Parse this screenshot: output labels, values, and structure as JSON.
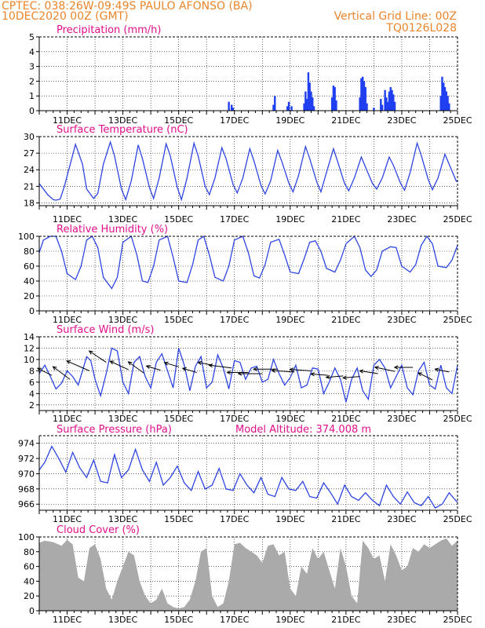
{
  "header": {
    "line1_left": "CPTEC:   038:26W-09:49S   PAULO AFONSO (BA)",
    "line2_left": "10DEC2020 00Z (GMT)",
    "line2_right": "Vertical Grid Line: 00Z",
    "line3_right": "TQ0126L028"
  },
  "colors": {
    "header": "#e8852a",
    "panel_title": "#e0108a",
    "line": "#2e45e0",
    "bar": "#1f3ff0",
    "cloud": "#aaaaaa",
    "arrow": "#000000",
    "text": "#000000"
  },
  "x_axis": {
    "ticks": [
      "11DEC",
      "13DEC",
      "15DEC",
      "17DEC",
      "19DEC",
      "21DEC",
      "23DEC",
      "25DEC"
    ],
    "tick_day_offsets": [
      1,
      3,
      5,
      7,
      9,
      11,
      13,
      15
    ],
    "range_days": [
      0,
      15
    ]
  },
  "chart_data": [
    {
      "type": "bar",
      "title": "Precipitation (mm/h)",
      "ylim": [
        0,
        5
      ],
      "yticks": [
        "0",
        "1",
        "2",
        "3",
        "4",
        "5"
      ],
      "x": [
        6.8,
        6.9,
        6.95,
        8.4,
        8.45,
        8.9,
        8.95,
        9.05,
        9.5,
        9.55,
        9.6,
        9.65,
        9.7,
        9.75,
        9.8,
        9.85,
        10.5,
        10.55,
        10.6,
        10.65,
        11.5,
        11.55,
        11.6,
        11.65,
        11.7,
        11.75,
        12.0,
        12.25,
        12.3,
        12.4,
        12.45,
        12.5,
        12.55,
        12.6,
        12.65,
        12.7,
        12.75,
        14.4,
        14.45,
        14.5,
        14.55,
        14.6,
        14.65,
        14.7
      ],
      "values": [
        0.6,
        0.4,
        0.2,
        0.4,
        1.0,
        0.3,
        0.6,
        0.3,
        0.5,
        1.3,
        0.8,
        2.6,
        1.9,
        1.3,
        0.9,
        0.3,
        0.9,
        1.7,
        1.6,
        0.7,
        0.9,
        2.2,
        2.3,
        2.0,
        1.6,
        0.5,
        0.2,
        0.8,
        0.4,
        1.4,
        0.9,
        0.6,
        1.3,
        1.6,
        1.4,
        1.1,
        0.6,
        1.0,
        2.3,
        1.9,
        1.6,
        1.3,
        1.0,
        0.5
      ]
    },
    {
      "type": "line",
      "title": "Surface Temperature (nC)",
      "ylim": [
        17.5,
        30
      ],
      "yticks": [
        "18",
        "21",
        "24",
        "27",
        "30"
      ],
      "x": [
        0,
        0.3,
        0.5,
        0.6,
        0.75,
        0.9,
        1.3,
        1.55,
        1.7,
        1.95,
        2.1,
        2.3,
        2.55,
        2.7,
        2.95,
        3.1,
        3.3,
        3.55,
        3.7,
        3.95,
        4.1,
        4.3,
        4.55,
        4.7,
        4.95,
        5.1,
        5.3,
        5.55,
        5.7,
        5.95,
        6.1,
        6.3,
        6.55,
        6.7,
        6.95,
        7.1,
        7.3,
        7.55,
        7.7,
        7.95,
        8.1,
        8.3,
        8.55,
        8.7,
        8.95,
        9.1,
        9.3,
        9.55,
        9.7,
        9.95,
        10.1,
        10.3,
        10.55,
        10.7,
        10.95,
        11.1,
        11.3,
        11.55,
        11.7,
        11.95,
        12.1,
        12.3,
        12.55,
        12.7,
        12.95,
        13.1,
        13.3,
        13.55,
        13.7,
        13.95,
        14.1,
        14.3,
        14.55,
        14.7,
        14.95,
        15
      ],
      "values": [
        21.5,
        19.5,
        18.6,
        18.5,
        18.7,
        21.0,
        28.6,
        25.0,
        20.5,
        18.8,
        19.7,
        25.0,
        29.0,
        26.5,
        20.5,
        18.6,
        22.0,
        28.5,
        26.0,
        20.8,
        18.8,
        22.5,
        28.7,
        26.5,
        20.8,
        18.6,
        22.5,
        28.8,
        26.5,
        21.0,
        19.5,
        22.5,
        28.0,
        26.0,
        21.3,
        19.8,
        22.5,
        27.8,
        25.6,
        21.2,
        19.6,
        22.0,
        27.5,
        25.5,
        21.6,
        20.0,
        23.0,
        28.2,
        26.0,
        21.8,
        20.0,
        23.5,
        27.8,
        25.5,
        21.5,
        20.2,
        22.5,
        26.3,
        24.5,
        21.5,
        20.5,
        22.5,
        26.3,
        24.8,
        21.6,
        20.3,
        23.5,
        28.8,
        26.6,
        22.2,
        20.4,
        22.5,
        26.8,
        25.0,
        22.0,
        21.8
      ]
    },
    {
      "type": "line",
      "title": "Relative Humidity (%)",
      "ylim": [
        0,
        100
      ],
      "yticks": [
        "0",
        "20",
        "40",
        "60",
        "80",
        "100"
      ],
      "x": [
        0,
        0.15,
        0.4,
        0.6,
        0.8,
        1.0,
        1.3,
        1.5,
        1.7,
        1.9,
        2.1,
        2.3,
        2.6,
        2.8,
        3.0,
        3.3,
        3.5,
        3.7,
        3.9,
        4.1,
        4.3,
        4.6,
        4.8,
        5.0,
        5.3,
        5.5,
        5.7,
        5.9,
        6.1,
        6.3,
        6.6,
        6.8,
        7.0,
        7.3,
        7.5,
        7.7,
        7.9,
        8.1,
        8.3,
        8.6,
        8.8,
        9.0,
        9.3,
        9.5,
        9.7,
        9.9,
        10.1,
        10.3,
        10.6,
        10.8,
        11.0,
        11.3,
        11.5,
        11.7,
        11.9,
        12.1,
        12.3,
        12.6,
        12.8,
        13.0,
        13.3,
        13.5,
        13.7,
        13.9,
        14.1,
        14.3,
        14.6,
        14.8,
        15
      ],
      "values": [
        78,
        95,
        100,
        100,
        80,
        50,
        42,
        60,
        95,
        100,
        85,
        45,
        30,
        45,
        92,
        100,
        75,
        40,
        38,
        60,
        95,
        100,
        72,
        40,
        38,
        62,
        95,
        100,
        75,
        45,
        40,
        60,
        95,
        100,
        78,
        47,
        44,
        62,
        92,
        96,
        75,
        52,
        50,
        70,
        92,
        94,
        80,
        57,
        52,
        68,
        90,
        100,
        85,
        55,
        46,
        55,
        80,
        86,
        85,
        60,
        52,
        62,
        88,
        100,
        90,
        60,
        58,
        68,
        88
      ]
    },
    {
      "type": "line",
      "title": "Surface Wind (m/s)",
      "ylim": [
        1,
        14
      ],
      "yticks": [
        "2",
        "4",
        "6",
        "8",
        "10",
        "12",
        "14"
      ],
      "x": [
        0,
        0.2,
        0.4,
        0.6,
        0.8,
        1.0,
        1.2,
        1.4,
        1.55,
        1.7,
        1.85,
        2.0,
        2.2,
        2.4,
        2.6,
        2.8,
        3.0,
        3.2,
        3.4,
        3.6,
        3.8,
        4.0,
        4.2,
        4.4,
        4.6,
        4.8,
        5.0,
        5.2,
        5.4,
        5.6,
        5.8,
        6.0,
        6.2,
        6.4,
        6.6,
        6.8,
        7.0,
        7.2,
        7.4,
        7.6,
        7.8,
        8.0,
        8.2,
        8.4,
        8.6,
        8.8,
        9.0,
        9.2,
        9.4,
        9.6,
        9.8,
        10.0,
        10.2,
        10.4,
        10.6,
        10.8,
        11.0,
        11.2,
        11.4,
        11.6,
        11.8,
        12.0,
        12.2,
        12.4,
        12.6,
        12.8,
        13.0,
        13.2,
        13.4,
        13.6,
        13.8,
        14.0,
        14.2,
        14.4,
        14.6,
        14.8,
        15
      ],
      "values": [
        7.5,
        9.0,
        7.0,
        4.8,
        5.8,
        8.0,
        7.0,
        5.5,
        8.0,
        10.5,
        9.8,
        6.5,
        3.6,
        7.5,
        12.0,
        11.5,
        6.0,
        4.0,
        9.5,
        10.5,
        7.0,
        5.0,
        9.5,
        11.0,
        8.0,
        5.0,
        12.0,
        9.0,
        4.5,
        8.8,
        10.5,
        5.0,
        6.0,
        10.8,
        8.5,
        4.8,
        9.8,
        9.5,
        6.5,
        8.5,
        8.8,
        6.0,
        6.5,
        10.0,
        7.5,
        5.5,
        6.8,
        9.0,
        5.0,
        5.5,
        8.5,
        8.3,
        4.0,
        6.0,
        8.5,
        6.5,
        2.5,
        6.5,
        8.5,
        4.5,
        3.0,
        9.0,
        10.0,
        8.5,
        5.0,
        7.0,
        9.0,
        5.0,
        3.8,
        8.0,
        9.5,
        5.5,
        4.8,
        9.0,
        5.0,
        4.0,
        9.0
      ]
    },
    {
      "type": "line",
      "title": "Surface Pressure (hPa)",
      "annotation": "Model Altitude: 374.008 m",
      "ylim": [
        965.2,
        975
      ],
      "yticks": [
        "966",
        "968",
        "970",
        "972",
        "974"
      ],
      "x": [
        0,
        0.2,
        0.45,
        0.7,
        0.95,
        1.2,
        1.45,
        1.7,
        1.95,
        2.2,
        2.45,
        2.7,
        2.95,
        3.2,
        3.45,
        3.7,
        3.95,
        4.2,
        4.45,
        4.7,
        4.95,
        5.2,
        5.45,
        5.7,
        5.95,
        6.2,
        6.45,
        6.7,
        6.95,
        7.2,
        7.45,
        7.7,
        7.95,
        8.2,
        8.45,
        8.7,
        8.95,
        9.2,
        9.45,
        9.7,
        9.95,
        10.2,
        10.45,
        10.7,
        10.95,
        11.2,
        11.45,
        11.7,
        11.95,
        12.2,
        12.45,
        12.7,
        12.95,
        13.2,
        13.45,
        13.7,
        13.95,
        14.2,
        14.45,
        14.7,
        15
      ],
      "values": [
        970.5,
        971.5,
        973.6,
        972.0,
        970.2,
        972.8,
        970.8,
        969.5,
        971.8,
        969.0,
        968.8,
        972.5,
        969.5,
        970.5,
        973.2,
        970.5,
        969.0,
        971.5,
        968.5,
        969.5,
        971.0,
        968.8,
        967.8,
        970.3,
        968.0,
        968.5,
        970.7,
        968.0,
        967.8,
        970.0,
        968.5,
        967.5,
        969.5,
        967.3,
        967.0,
        969.5,
        968.0,
        967.8,
        969.0,
        967.0,
        966.8,
        968.8,
        967.5,
        966.0,
        968.5,
        967.0,
        966.5,
        967.5,
        966.5,
        965.8,
        968.5,
        967.0,
        966.0,
        967.6,
        966.2,
        965.8,
        967.0,
        965.5,
        966.0,
        967.5,
        966.2
      ]
    },
    {
      "type": "area",
      "title": "Cloud Cover (%)",
      "ylim": [
        0,
        100
      ],
      "yticks": [
        "0",
        "20",
        "40",
        "60",
        "80",
        "100"
      ],
      "x": [
        0,
        0.2,
        0.5,
        0.8,
        1.0,
        1.2,
        1.4,
        1.6,
        1.8,
        2.0,
        2.2,
        2.4,
        2.6,
        2.8,
        3.0,
        3.2,
        3.4,
        3.6,
        3.8,
        4.0,
        4.2,
        4.4,
        4.6,
        4.8,
        5.0,
        5.2,
        5.4,
        5.6,
        5.8,
        6.0,
        6.2,
        6.4,
        6.6,
        6.8,
        7.0,
        7.2,
        7.4,
        7.6,
        7.8,
        8.0,
        8.2,
        8.4,
        8.6,
        8.8,
        9.0,
        9.2,
        9.4,
        9.6,
        9.8,
        10.0,
        10.2,
        10.4,
        10.6,
        10.8,
        11.0,
        11.2,
        11.4,
        11.6,
        11.8,
        12.0,
        12.2,
        12.4,
        12.6,
        12.8,
        13.0,
        13.2,
        13.4,
        13.6,
        13.8,
        14.0,
        14.2,
        14.4,
        14.6,
        14.8,
        15
      ],
      "values": [
        92,
        95,
        93,
        88,
        96,
        90,
        45,
        40,
        85,
        90,
        70,
        30,
        15,
        40,
        60,
        80,
        75,
        40,
        20,
        10,
        15,
        30,
        10,
        5,
        3,
        5,
        15,
        40,
        80,
        85,
        20,
        5,
        10,
        40,
        90,
        92,
        85,
        80,
        75,
        65,
        88,
        90,
        75,
        80,
        30,
        20,
        60,
        50,
        85,
        70,
        80,
        55,
        30,
        85,
        60,
        20,
        10,
        95,
        85,
        70,
        75,
        40,
        90,
        75,
        55,
        60,
        85,
        80,
        90,
        85,
        90,
        95,
        98,
        88,
        95
      ]
    },
    {
      "type": "vector",
      "title": "Surface Wind (m/s) vectors",
      "x": [
        0.45,
        1.1,
        1.8,
        2.4,
        3.2,
        3.75,
        4.35,
        5.0,
        5.65,
        6.2,
        6.9,
        7.5,
        8.0,
        8.55,
        9.15,
        9.75,
        10.35,
        10.9,
        11.5,
        12.15,
        12.75,
        13.4,
        14.1,
        14.7
      ],
      "y": [
        7.2,
        6.5,
        8.0,
        9.5,
        8.2,
        7.6,
        8.1,
        8.7,
        7.7,
        9.0,
        8.5,
        7.7,
        7.5,
        8.3,
        7.8,
        8.0,
        7.2,
        7.1,
        7.0,
        7.5,
        7.9,
        8.6,
        6.4,
        7.8
      ],
      "u": [
        -1.0,
        -1.2,
        -1.6,
        -1.2,
        -1.3,
        -1.1,
        -1.0,
        -1.0,
        -1.0,
        -1.0,
        -1.6,
        -1.5,
        -1.7,
        -1.7,
        -1.6,
        -1.5,
        -1.2,
        -1.2,
        -1.2,
        -1.3,
        -1.4,
        -1.3,
        -1.0,
        -1.0
      ],
      "v": [
        0.5,
        0.9,
        0.7,
        0.8,
        0.6,
        0.8,
        0.3,
        0.3,
        0.3,
        0.2,
        0.2,
        0.0,
        0.0,
        0.0,
        0.1,
        0.1,
        0.1,
        -0.1,
        -0.1,
        0.2,
        0.3,
        0.0,
        0.5,
        0.2
      ]
    }
  ]
}
